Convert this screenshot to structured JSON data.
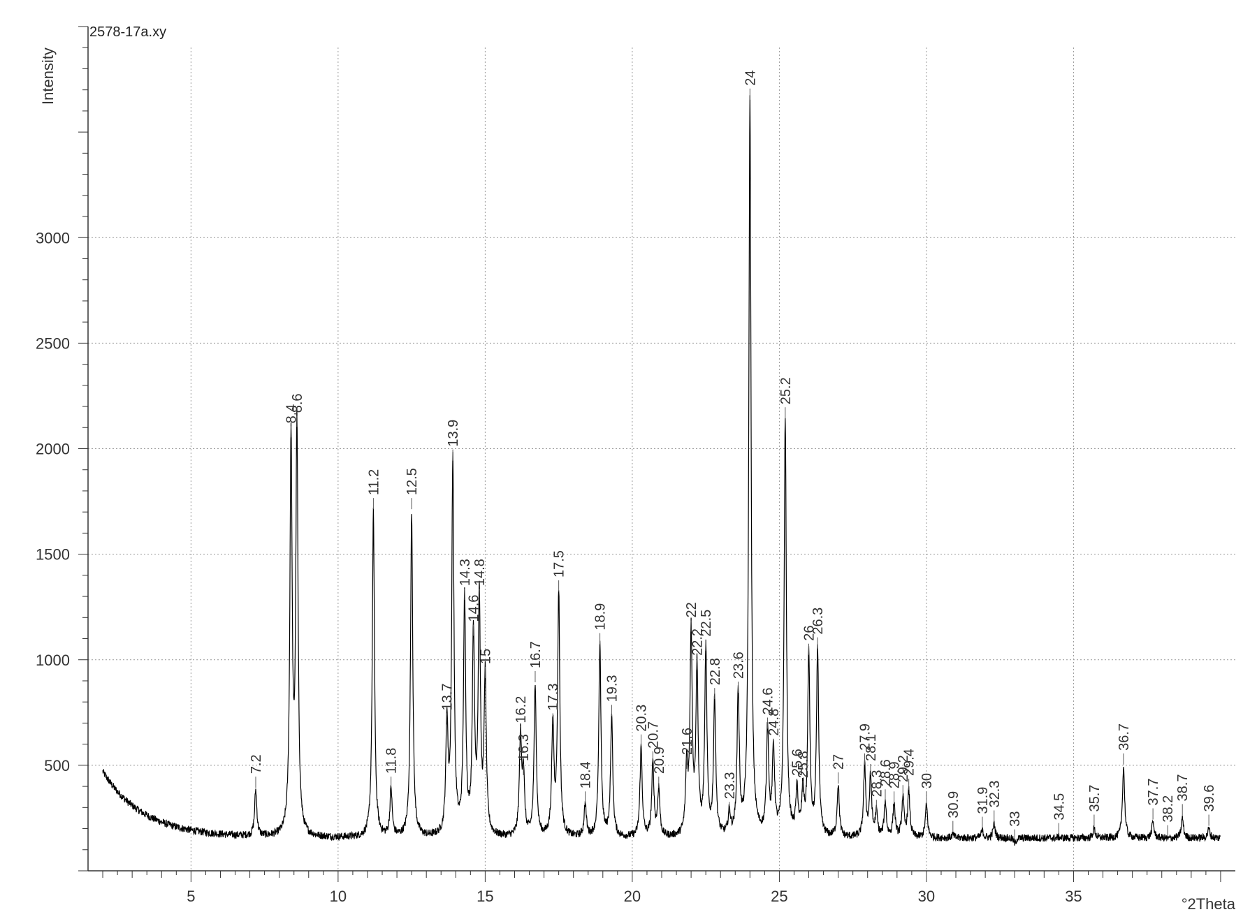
{
  "chart_data": {
    "type": "line",
    "file_label": "2578-17a.xy",
    "xlabel": "°2Theta",
    "ylabel": "Intensity",
    "xlim": [
      1.5,
      40.5
    ],
    "ylim": [
      0,
      4000
    ],
    "x_ticks": [
      5,
      10,
      15,
      20,
      25,
      30,
      35
    ],
    "x_tick_labels": [
      "5",
      "10",
      "15",
      "20",
      "25",
      "30",
      "35"
    ],
    "y_ticks": [
      500,
      1000,
      1500,
      2000,
      2500,
      3000
    ],
    "y_tick_labels": [
      "500",
      "1000",
      "1500",
      "2000",
      "2500",
      "3000"
    ],
    "grid": true,
    "line_color": "#000000",
    "grid_color": "#999999",
    "background": {
      "start_x": 2.0,
      "start_y": 470,
      "min_y": 155,
      "end_y": 75,
      "noise": 18
    },
    "peaks": [
      {
        "label": "7.2",
        "x": 7.2,
        "y": 380
      },
      {
        "label": "8.4",
        "x": 8.4,
        "y": 2040
      },
      {
        "label": "8.6",
        "x": 8.6,
        "y": 2090
      },
      {
        "label": "11.2",
        "x": 11.2,
        "y": 1700
      },
      {
        "label": "11.8",
        "x": 11.8,
        "y": 380
      },
      {
        "label": "12.5",
        "x": 12.5,
        "y": 1700
      },
      {
        "label": "13.7",
        "x": 13.7,
        "y": 680
      },
      {
        "label": "13.9",
        "x": 13.9,
        "y": 1930
      },
      {
        "label": "14.3",
        "x": 14.3,
        "y": 1270
      },
      {
        "label": "14.6",
        "x": 14.6,
        "y": 1100
      },
      {
        "label": "14.8",
        "x": 14.8,
        "y": 1270
      },
      {
        "label": "15",
        "x": 15.0,
        "y": 900
      },
      {
        "label": "16.2",
        "x": 16.2,
        "y": 620
      },
      {
        "label": "16.3",
        "x": 16.3,
        "y": 440
      },
      {
        "label": "16.7",
        "x": 16.7,
        "y": 880
      },
      {
        "label": "17.3",
        "x": 17.3,
        "y": 680
      },
      {
        "label": "17.5",
        "x": 17.5,
        "y": 1310
      },
      {
        "label": "18.4",
        "x": 18.4,
        "y": 310
      },
      {
        "label": "18.9",
        "x": 18.9,
        "y": 1060
      },
      {
        "label": "19.3",
        "x": 19.3,
        "y": 720
      },
      {
        "label": "20.3",
        "x": 20.3,
        "y": 580
      },
      {
        "label": "20.7",
        "x": 20.7,
        "y": 500
      },
      {
        "label": "20.9",
        "x": 20.9,
        "y": 380
      },
      {
        "label": "22",
        "x": 22.0,
        "y": 1120
      },
      {
        "label": "21.6",
        "x": 21.85,
        "y": 470
      },
      {
        "label": "22.2",
        "x": 22.2,
        "y": 940
      },
      {
        "label": "22.5",
        "x": 22.5,
        "y": 1030
      },
      {
        "label": "22.8",
        "x": 22.8,
        "y": 800
      },
      {
        "label": "23.3",
        "x": 23.3,
        "y": 260
      },
      {
        "label": "23.6",
        "x": 23.6,
        "y": 830
      },
      {
        "label": "24",
        "x": 24.0,
        "y": 3640
      },
      {
        "label": "24.6",
        "x": 24.6,
        "y": 660
      },
      {
        "label": "24.8",
        "x": 24.8,
        "y": 560
      },
      {
        "label": "25.2",
        "x": 25.2,
        "y": 2130
      },
      {
        "label": "25.6",
        "x": 25.6,
        "y": 370
      },
      {
        "label": "25.8",
        "x": 25.8,
        "y": 360
      },
      {
        "label": "26",
        "x": 26.0,
        "y": 1010
      },
      {
        "label": "26.3",
        "x": 26.3,
        "y": 1040
      },
      {
        "label": "27",
        "x": 27.0,
        "y": 400
      },
      {
        "label": "27.9",
        "x": 27.9,
        "y": 490
      },
      {
        "label": "28.1",
        "x": 28.1,
        "y": 440
      },
      {
        "label": "28.3",
        "x": 28.3,
        "y": 270
      },
      {
        "label": "28.6",
        "x": 28.6,
        "y": 320
      },
      {
        "label": "28.9",
        "x": 28.9,
        "y": 310
      },
      {
        "label": "29.2",
        "x": 29.2,
        "y": 340
      },
      {
        "label": "29.4",
        "x": 29.4,
        "y": 370
      },
      {
        "label": "30",
        "x": 30.0,
        "y": 310
      },
      {
        "label": "30.9",
        "x": 30.9,
        "y": 170
      },
      {
        "label": "31.9",
        "x": 31.9,
        "y": 190
      },
      {
        "label": "32.3",
        "x": 32.3,
        "y": 220
      },
      {
        "label": "33",
        "x": 33.0,
        "y": 130
      },
      {
        "label": "34.5",
        "x": 34.5,
        "y": 160
      },
      {
        "label": "35.7",
        "x": 35.7,
        "y": 200
      },
      {
        "label": "36.7",
        "x": 36.7,
        "y": 490
      },
      {
        "label": "37.7",
        "x": 37.7,
        "y": 230
      },
      {
        "label": "38.2",
        "x": 38.2,
        "y": 150
      },
      {
        "label": "38.7",
        "x": 38.7,
        "y": 250
      },
      {
        "label": "39.6",
        "x": 39.6,
        "y": 200
      }
    ]
  }
}
